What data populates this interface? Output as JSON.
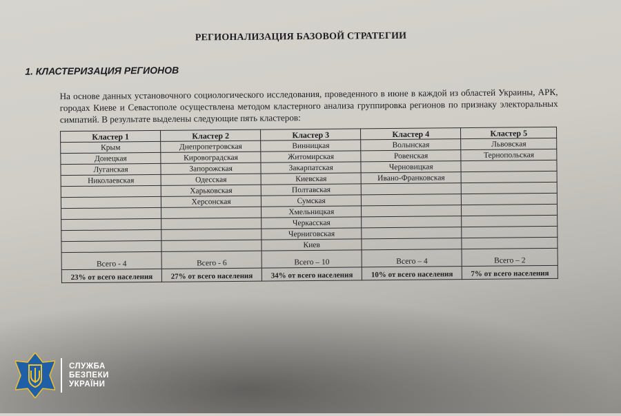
{
  "document": {
    "title": "РЕГИОНАЛИЗАЦИЯ БАЗОВОЙ СТРАТЕГИИ",
    "section_heading": "1. КЛАСТЕРИЗАЦИЯ  РЕГИОНОВ",
    "paragraph": "На основе данных установочного социологического исследования, проведенного в июне в каждой из областей Украины, АРК, городах Киеве и Севастополе осуществлена методом кластерного анализа группировка регионов по признаку электоральных симпатий. В результате выделены следующие пять кластеров:"
  },
  "table": {
    "headers": [
      "Кластер 1",
      "Кластер 2",
      "Кластер 3",
      "Кластер 4",
      "Кластер 5"
    ],
    "rows": [
      [
        "Крым",
        "Днепропетровская",
        "Винницкая",
        "Волынская",
        "Львовская"
      ],
      [
        "Донецкая",
        "Кировоградская",
        "Житомирская",
        "Ровенская",
        "Тернопольская"
      ],
      [
        "Луганская",
        "Запорожская",
        "Закарпатская",
        "Черновицкая",
        ""
      ],
      [
        "Николаевская",
        "Одесская",
        "Киевская",
        "Ивано-Франковская",
        ""
      ],
      [
        "",
        "Харьковская",
        "Полтавская",
        "",
        ""
      ],
      [
        "",
        "Херсонская",
        "Сумская",
        "",
        ""
      ],
      [
        "",
        "",
        "Хмельницкая",
        "",
        ""
      ],
      [
        "",
        "",
        "Черкасская",
        "",
        ""
      ],
      [
        "",
        "",
        "Черниговская",
        "",
        ""
      ],
      [
        "",
        "",
        "Киев",
        "",
        ""
      ]
    ],
    "totals": [
      "Всего - 4",
      "Всего - 6",
      "Всего – 10",
      "Всего – 4",
      "Всего – 2"
    ],
    "population_share": [
      "23% от всего населения",
      "27% от всего населения",
      "34% от всего населения",
      "10% от всего населения",
      "7% от всего населения"
    ]
  },
  "logo": {
    "lines": [
      "СЛУЖБА",
      "БЕЗПЕКИ",
      "УКРАЇНИ"
    ],
    "colors": {
      "shield": "#1f5fa8",
      "emblem": "#f2c12e"
    }
  }
}
